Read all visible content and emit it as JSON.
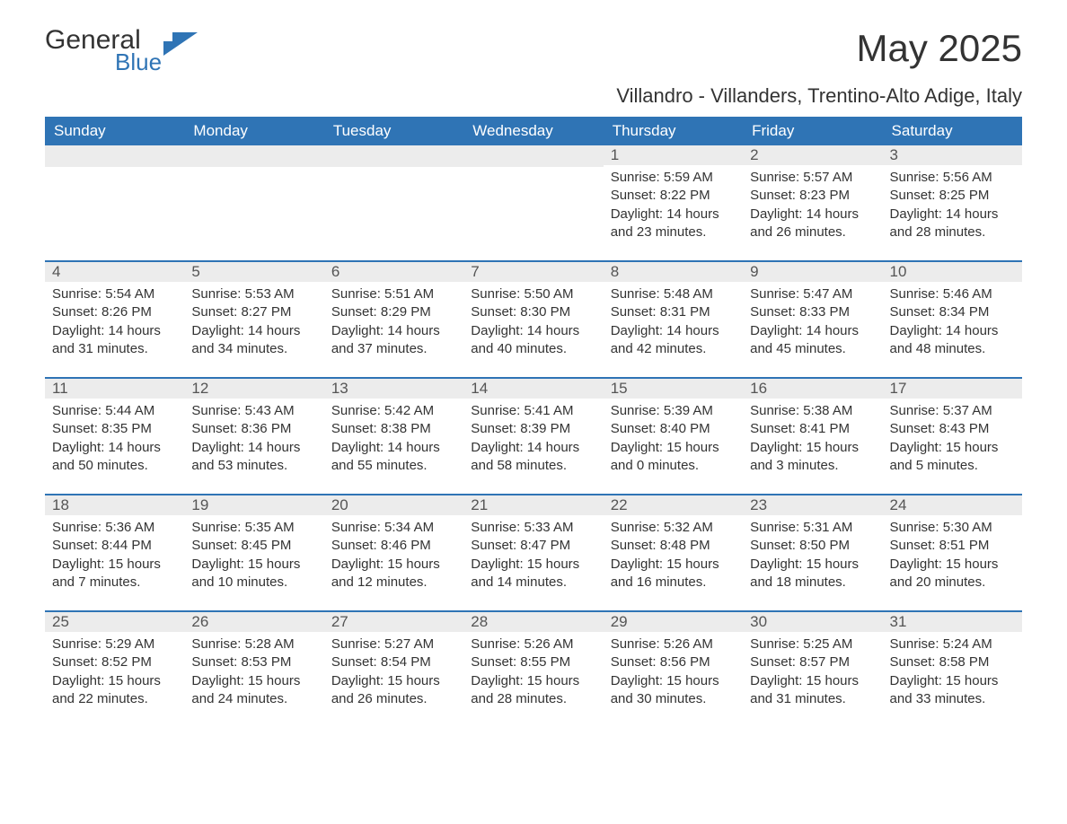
{
  "brand": {
    "general": "General",
    "blue": "Blue",
    "accent_color": "#2f74b5"
  },
  "title": "May 2025",
  "subtitle": "Villandro - Villanders, Trentino-Alto Adige, Italy",
  "weekdays": [
    "Sunday",
    "Monday",
    "Tuesday",
    "Wednesday",
    "Thursday",
    "Friday",
    "Saturday"
  ],
  "colors": {
    "header_bg": "#2f74b5",
    "header_text": "#ffffff",
    "daynum_bg": "#ececec",
    "daynum_text": "#555555",
    "body_text": "#333333",
    "row_border": "#2f74b5",
    "page_bg": "#ffffff"
  },
  "typography": {
    "title_fontsize": 42,
    "subtitle_fontsize": 22,
    "weekday_fontsize": 17,
    "daynum_fontsize": 17,
    "body_fontsize": 15,
    "font_family": "Segoe UI, Arial, sans-serif"
  },
  "weeks": [
    [
      {
        "empty": true
      },
      {
        "empty": true
      },
      {
        "empty": true
      },
      {
        "empty": true
      },
      {
        "n": "1",
        "sunrise": "Sunrise: 5:59 AM",
        "sunset": "Sunset: 8:22 PM",
        "daylight": "Daylight: 14 hours and 23 minutes."
      },
      {
        "n": "2",
        "sunrise": "Sunrise: 5:57 AM",
        "sunset": "Sunset: 8:23 PM",
        "daylight": "Daylight: 14 hours and 26 minutes."
      },
      {
        "n": "3",
        "sunrise": "Sunrise: 5:56 AM",
        "sunset": "Sunset: 8:25 PM",
        "daylight": "Daylight: 14 hours and 28 minutes."
      }
    ],
    [
      {
        "n": "4",
        "sunrise": "Sunrise: 5:54 AM",
        "sunset": "Sunset: 8:26 PM",
        "daylight": "Daylight: 14 hours and 31 minutes."
      },
      {
        "n": "5",
        "sunrise": "Sunrise: 5:53 AM",
        "sunset": "Sunset: 8:27 PM",
        "daylight": "Daylight: 14 hours and 34 minutes."
      },
      {
        "n": "6",
        "sunrise": "Sunrise: 5:51 AM",
        "sunset": "Sunset: 8:29 PM",
        "daylight": "Daylight: 14 hours and 37 minutes."
      },
      {
        "n": "7",
        "sunrise": "Sunrise: 5:50 AM",
        "sunset": "Sunset: 8:30 PM",
        "daylight": "Daylight: 14 hours and 40 minutes."
      },
      {
        "n": "8",
        "sunrise": "Sunrise: 5:48 AM",
        "sunset": "Sunset: 8:31 PM",
        "daylight": "Daylight: 14 hours and 42 minutes."
      },
      {
        "n": "9",
        "sunrise": "Sunrise: 5:47 AM",
        "sunset": "Sunset: 8:33 PM",
        "daylight": "Daylight: 14 hours and 45 minutes."
      },
      {
        "n": "10",
        "sunrise": "Sunrise: 5:46 AM",
        "sunset": "Sunset: 8:34 PM",
        "daylight": "Daylight: 14 hours and 48 minutes."
      }
    ],
    [
      {
        "n": "11",
        "sunrise": "Sunrise: 5:44 AM",
        "sunset": "Sunset: 8:35 PM",
        "daylight": "Daylight: 14 hours and 50 minutes."
      },
      {
        "n": "12",
        "sunrise": "Sunrise: 5:43 AM",
        "sunset": "Sunset: 8:36 PM",
        "daylight": "Daylight: 14 hours and 53 minutes."
      },
      {
        "n": "13",
        "sunrise": "Sunrise: 5:42 AM",
        "sunset": "Sunset: 8:38 PM",
        "daylight": "Daylight: 14 hours and 55 minutes."
      },
      {
        "n": "14",
        "sunrise": "Sunrise: 5:41 AM",
        "sunset": "Sunset: 8:39 PM",
        "daylight": "Daylight: 14 hours and 58 minutes."
      },
      {
        "n": "15",
        "sunrise": "Sunrise: 5:39 AM",
        "sunset": "Sunset: 8:40 PM",
        "daylight": "Daylight: 15 hours and 0 minutes."
      },
      {
        "n": "16",
        "sunrise": "Sunrise: 5:38 AM",
        "sunset": "Sunset: 8:41 PM",
        "daylight": "Daylight: 15 hours and 3 minutes."
      },
      {
        "n": "17",
        "sunrise": "Sunrise: 5:37 AM",
        "sunset": "Sunset: 8:43 PM",
        "daylight": "Daylight: 15 hours and 5 minutes."
      }
    ],
    [
      {
        "n": "18",
        "sunrise": "Sunrise: 5:36 AM",
        "sunset": "Sunset: 8:44 PM",
        "daylight": "Daylight: 15 hours and 7 minutes."
      },
      {
        "n": "19",
        "sunrise": "Sunrise: 5:35 AM",
        "sunset": "Sunset: 8:45 PM",
        "daylight": "Daylight: 15 hours and 10 minutes."
      },
      {
        "n": "20",
        "sunrise": "Sunrise: 5:34 AM",
        "sunset": "Sunset: 8:46 PM",
        "daylight": "Daylight: 15 hours and 12 minutes."
      },
      {
        "n": "21",
        "sunrise": "Sunrise: 5:33 AM",
        "sunset": "Sunset: 8:47 PM",
        "daylight": "Daylight: 15 hours and 14 minutes."
      },
      {
        "n": "22",
        "sunrise": "Sunrise: 5:32 AM",
        "sunset": "Sunset: 8:48 PM",
        "daylight": "Daylight: 15 hours and 16 minutes."
      },
      {
        "n": "23",
        "sunrise": "Sunrise: 5:31 AM",
        "sunset": "Sunset: 8:50 PM",
        "daylight": "Daylight: 15 hours and 18 minutes."
      },
      {
        "n": "24",
        "sunrise": "Sunrise: 5:30 AM",
        "sunset": "Sunset: 8:51 PM",
        "daylight": "Daylight: 15 hours and 20 minutes."
      }
    ],
    [
      {
        "n": "25",
        "sunrise": "Sunrise: 5:29 AM",
        "sunset": "Sunset: 8:52 PM",
        "daylight": "Daylight: 15 hours and 22 minutes."
      },
      {
        "n": "26",
        "sunrise": "Sunrise: 5:28 AM",
        "sunset": "Sunset: 8:53 PM",
        "daylight": "Daylight: 15 hours and 24 minutes."
      },
      {
        "n": "27",
        "sunrise": "Sunrise: 5:27 AM",
        "sunset": "Sunset: 8:54 PM",
        "daylight": "Daylight: 15 hours and 26 minutes."
      },
      {
        "n": "28",
        "sunrise": "Sunrise: 5:26 AM",
        "sunset": "Sunset: 8:55 PM",
        "daylight": "Daylight: 15 hours and 28 minutes."
      },
      {
        "n": "29",
        "sunrise": "Sunrise: 5:26 AM",
        "sunset": "Sunset: 8:56 PM",
        "daylight": "Daylight: 15 hours and 30 minutes."
      },
      {
        "n": "30",
        "sunrise": "Sunrise: 5:25 AM",
        "sunset": "Sunset: 8:57 PM",
        "daylight": "Daylight: 15 hours and 31 minutes."
      },
      {
        "n": "31",
        "sunrise": "Sunrise: 5:24 AM",
        "sunset": "Sunset: 8:58 PM",
        "daylight": "Daylight: 15 hours and 33 minutes."
      }
    ]
  ]
}
